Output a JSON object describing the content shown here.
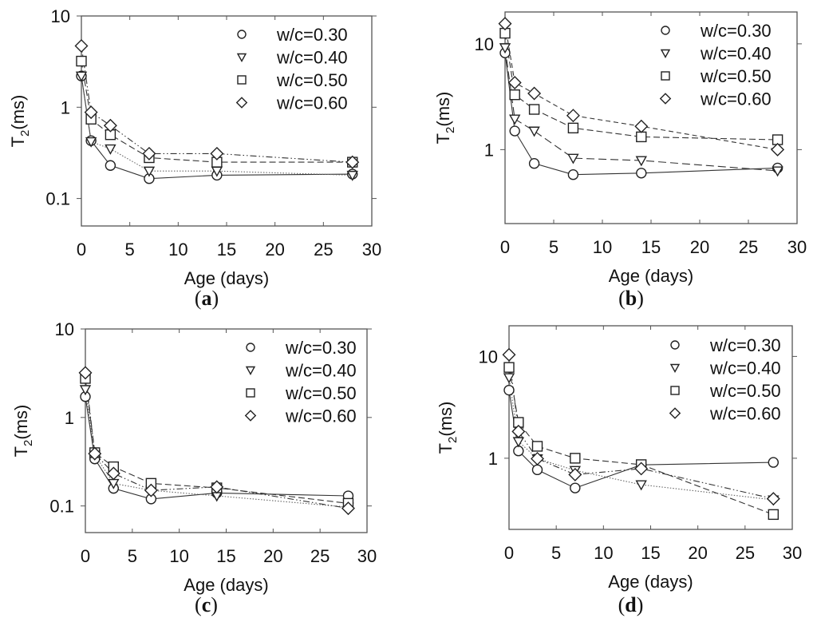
{
  "figure": {
    "panels": [
      {
        "label_letter": "a"
      },
      {
        "label_letter": "b"
      },
      {
        "label_letter": "c"
      },
      {
        "label_letter": "d"
      }
    ]
  },
  "chart_data": [
    {
      "type": "line",
      "panel": "a",
      "title": "",
      "xlabel": "Age (days)",
      "ylabel": "T2(ms)",
      "yscale": "log",
      "xlim": [
        0,
        30
      ],
      "ylim": [
        0.05,
        10
      ],
      "xticks": [
        0,
        5,
        10,
        15,
        20,
        25,
        30
      ],
      "yticks": [
        0.1,
        1,
        10
      ],
      "ytick_labels": [
        "0.1",
        "1",
        "10"
      ],
      "grid": false,
      "legend_position": "top-right",
      "x": [
        0,
        1,
        3,
        7,
        14,
        28
      ],
      "series": [
        {
          "name": "w/c=0.30",
          "marker": "circle",
          "line": "solid",
          "values": [
            2.2,
            0.43,
            0.23,
            0.165,
            0.18,
            0.185
          ]
        },
        {
          "name": "w/c=0.40",
          "marker": "triangle-down",
          "line": "dotted",
          "values": [
            2.2,
            0.42,
            0.35,
            0.2,
            0.2,
            0.18
          ]
        },
        {
          "name": "w/c=0.50",
          "marker": "square",
          "line": "dashed",
          "values": [
            3.2,
            0.74,
            0.5,
            0.28,
            0.25,
            0.25
          ]
        },
        {
          "name": "w/c=0.60",
          "marker": "diamond",
          "line": "dash-dot-dot",
          "values": [
            4.7,
            0.88,
            0.63,
            0.31,
            0.31,
            0.25
          ]
        }
      ]
    },
    {
      "type": "line",
      "panel": "b",
      "title": "",
      "xlabel": "Age (days)",
      "ylabel": "T2(ms)",
      "yscale": "log",
      "xlim": [
        0,
        30
      ],
      "ylim": [
        0.2,
        20
      ],
      "xticks": [
        0,
        5,
        10,
        15,
        20,
        25,
        30
      ],
      "yticks": [
        1,
        10
      ],
      "ytick_labels": [
        "1",
        "10"
      ],
      "grid": false,
      "legend_position": "top-right",
      "x": [
        0,
        1,
        3,
        7,
        14,
        28
      ],
      "series": [
        {
          "name": "w/c=0.30",
          "marker": "circle",
          "line": "solid",
          "values": [
            8.2,
            1.5,
            0.74,
            0.58,
            0.6,
            0.67
          ]
        },
        {
          "name": "w/c=0.40",
          "marker": "triangle-down",
          "line": "long-dash",
          "values": [
            9.2,
            1.95,
            1.5,
            0.83,
            0.79,
            0.63
          ]
        },
        {
          "name": "w/c=0.50",
          "marker": "square",
          "line": "dashed",
          "values": [
            12.6,
            3.3,
            2.4,
            1.6,
            1.32,
            1.24
          ]
        },
        {
          "name": "w/c=0.60",
          "marker": "diamond",
          "line": "short-dash",
          "values": [
            15.5,
            4.3,
            3.4,
            2.1,
            1.66,
            1.0
          ]
        }
      ]
    },
    {
      "type": "line",
      "panel": "c",
      "title": "",
      "xlabel": "Age (days)",
      "ylabel": "T2(ms)",
      "yscale": "log",
      "xlim": [
        0,
        30
      ],
      "ylim": [
        0.05,
        10
      ],
      "xticks": [
        0,
        5,
        10,
        15,
        20,
        25,
        30
      ],
      "yticks": [
        0.1,
        1,
        10
      ],
      "ytick_labels": [
        "0.1",
        "1",
        "10"
      ],
      "grid": false,
      "legend_position": "top-right",
      "x": [
        0,
        1,
        3,
        7,
        14,
        28
      ],
      "series": [
        {
          "name": "w/c=0.30",
          "marker": "circle",
          "line": "solid",
          "values": [
            1.72,
            0.34,
            0.158,
            0.12,
            0.14,
            0.13
          ]
        },
        {
          "name": "w/c=0.40",
          "marker": "triangle-down",
          "line": "dotted",
          "values": [
            2.07,
            0.38,
            0.18,
            0.15,
            0.13,
            0.097
          ]
        },
        {
          "name": "w/c=0.50",
          "marker": "square",
          "line": "dashed",
          "values": [
            2.76,
            0.4,
            0.277,
            0.18,
            0.16,
            0.107
          ]
        },
        {
          "name": "w/c=0.60",
          "marker": "diamond",
          "line": "dash-dot-dot",
          "values": [
            3.2,
            0.39,
            0.233,
            0.15,
            0.164,
            0.094
          ]
        }
      ]
    },
    {
      "type": "line",
      "panel": "d",
      "title": "",
      "xlabel": "Age (days)",
      "ylabel": "T2(ms)",
      "yscale": "log",
      "xlim": [
        0,
        30
      ],
      "ylim": [
        0.2,
        20
      ],
      "xticks": [
        0,
        5,
        10,
        15,
        20,
        25,
        30
      ],
      "yticks": [
        1,
        10
      ],
      "ytick_labels": [
        "1",
        "10"
      ],
      "grid": false,
      "legend_position": "top-right",
      "x": [
        0,
        1,
        3,
        7,
        14,
        28
      ],
      "series": [
        {
          "name": "w/c=0.30",
          "marker": "circle",
          "line": "solid",
          "values": [
            4.66,
            1.18,
            0.77,
            0.51,
            0.86,
            0.91
          ]
        },
        {
          "name": "w/c=0.40",
          "marker": "triangle-down",
          "line": "dotted",
          "values": [
            6.2,
            1.46,
            0.99,
            0.76,
            0.55,
            0.39
          ]
        },
        {
          "name": "w/c=0.50",
          "marker": "square",
          "line": "dashed",
          "values": [
            7.8,
            2.25,
            1.31,
            1.0,
            0.865,
            0.28
          ]
        },
        {
          "name": "w/c=0.60",
          "marker": "diamond",
          "line": "dash-dot-dot",
          "values": [
            10.4,
            1.83,
            0.99,
            0.69,
            0.79,
            0.4
          ]
        }
      ]
    }
  ]
}
